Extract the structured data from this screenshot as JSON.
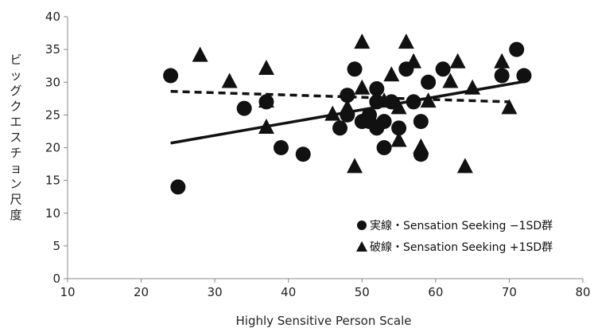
{
  "chart_data": {
    "type": "scatter",
    "xlabel": "Highly Sensitive Person Scale",
    "ylabel": "ビッグクエスチョン尺度",
    "xlim": [
      10,
      80
    ],
    "ylim": [
      0,
      40
    ],
    "xticks": [
      "10",
      "20",
      "30",
      "40",
      "50",
      "60",
      "70",
      "80"
    ],
    "yticks": [
      "0",
      "5",
      "10",
      "15",
      "20",
      "25",
      "30",
      "35",
      "40"
    ],
    "grid": false,
    "legend_position": "bottom-right",
    "series": [
      {
        "name": "実線・Sensation Seeking −1SD群",
        "marker": "circle",
        "line_style": "solid",
        "color": "#111111",
        "points": [
          [
            24,
            31
          ],
          [
            25,
            14
          ],
          [
            34,
            26
          ],
          [
            37,
            27
          ],
          [
            39,
            20
          ],
          [
            42,
            19
          ],
          [
            47,
            23
          ],
          [
            48,
            25
          ],
          [
            48,
            28
          ],
          [
            49,
            32
          ],
          [
            50,
            24
          ],
          [
            51,
            24
          ],
          [
            51,
            25
          ],
          [
            52,
            29
          ],
          [
            52,
            23
          ],
          [
            52,
            27
          ],
          [
            53,
            20
          ],
          [
            53,
            24
          ],
          [
            54,
            27
          ],
          [
            55,
            23
          ],
          [
            56,
            32
          ],
          [
            57,
            27
          ],
          [
            58,
            24
          ],
          [
            58,
            19
          ],
          [
            59,
            30
          ],
          [
            61,
            32
          ],
          [
            69,
            31
          ],
          [
            71,
            35
          ],
          [
            72,
            31
          ]
        ],
        "trend": [
          [
            24,
            20.7
          ],
          [
            72,
            30.1
          ]
        ]
      },
      {
        "name": "破線・Sensation Seeking +1SD群",
        "marker": "triangle",
        "line_style": "dashed",
        "color": "#111111",
        "points": [
          [
            28,
            34
          ],
          [
            32,
            30
          ],
          [
            37,
            32
          ],
          [
            37,
            27
          ],
          [
            37,
            23
          ],
          [
            46,
            25
          ],
          [
            48,
            26
          ],
          [
            49,
            17
          ],
          [
            50,
            36
          ],
          [
            50,
            29
          ],
          [
            53,
            27
          ],
          [
            54,
            31
          ],
          [
            55,
            21
          ],
          [
            55,
            26
          ],
          [
            56,
            36
          ],
          [
            57,
            33
          ],
          [
            58,
            20
          ],
          [
            59,
            27
          ],
          [
            62,
            30
          ],
          [
            63,
            33
          ],
          [
            64,
            17
          ],
          [
            65,
            29
          ],
          [
            69,
            33
          ],
          [
            70,
            26
          ]
        ],
        "trend": [
          [
            24,
            28.6
          ],
          [
            70,
            27
          ]
        ]
      }
    ]
  }
}
